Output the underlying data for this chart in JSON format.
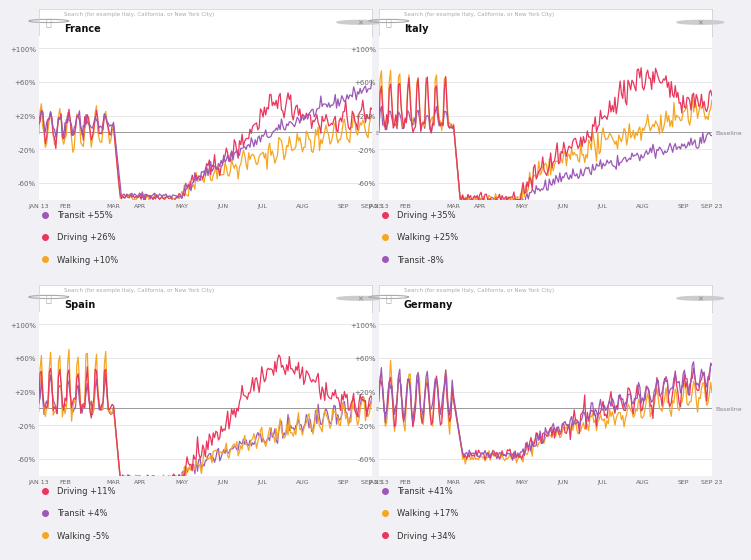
{
  "panels": [
    {
      "title": "France",
      "legend": [
        {
          "label": "Transit +55%",
          "color": "#9B59B6"
        },
        {
          "label": "Driving +26%",
          "color": "#E8365D"
        },
        {
          "label": "Walking +10%",
          "color": "#F5A623"
        }
      ]
    },
    {
      "title": "Italy",
      "legend": [
        {
          "label": "Driving +35%",
          "color": "#E8365D"
        },
        {
          "label": "Walking +25%",
          "color": "#F5A623"
        },
        {
          "label": "Transit -8%",
          "color": "#9B59B6"
        }
      ]
    },
    {
      "title": "Spain",
      "legend": [
        {
          "label": "Driving +11%",
          "color": "#E8365D"
        },
        {
          "label": "Transit +4%",
          "color": "#9B59B6"
        },
        {
          "label": "Walking -5%",
          "color": "#F5A623"
        }
      ]
    },
    {
      "title": "Germany",
      "legend": [
        {
          "label": "Transit +41%",
          "color": "#9B59B6"
        },
        {
          "label": "Walking +17%",
          "color": "#F5A623"
        },
        {
          "label": "Driving +34%",
          "color": "#E8365D"
        }
      ]
    }
  ],
  "xtick_labels": [
    "JAN 13",
    "FEB",
    "MAR",
    "APR",
    "MAY",
    "JUN",
    "JUL",
    "AUG",
    "SEP",
    "SEP 23"
  ],
  "ytick_values": [
    100,
    60,
    20,
    -20,
    -60
  ],
  "bg_color": "#F0F0F5",
  "panel_bg": "#FFFFFF",
  "baseline_color": "#999999",
  "grid_color": "#DDDDDD",
  "search_placeholder": "Search (for example Italy, California, or New York City)",
  "colors": {
    "transit": "#9B59B6",
    "driving": "#E8365D",
    "walking": "#F5A623"
  }
}
